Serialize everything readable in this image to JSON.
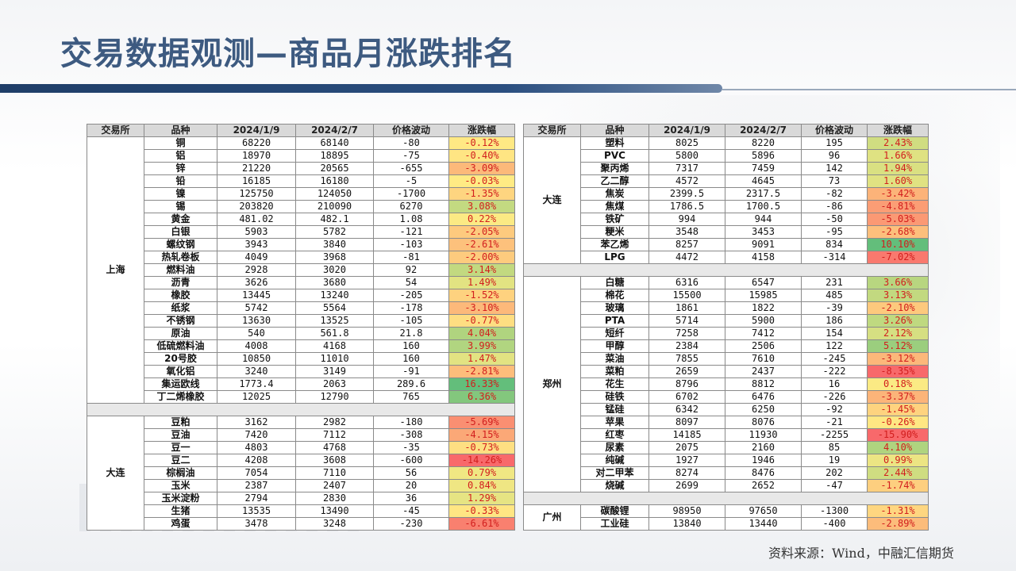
{
  "title": "交易数据观测—商品月涨跌排名",
  "source": "资料来源：Wind，中融汇信期货",
  "headers": [
    "交易所",
    "品种",
    "2024/1/9",
    "2024/2/7",
    "价格波动",
    "涨跌幅"
  ],
  "colors": {
    "title": "#3d5a80",
    "bar": "#1f3e68",
    "header_bg": "#d9d9d9",
    "text_red": "#d21e1e"
  },
  "left_groups": [
    {
      "exchange": "上海",
      "rows": [
        [
          "铜",
          "68220",
          "68140",
          "-80",
          "-0.12%"
        ],
        [
          "铝",
          "18970",
          "18895",
          "-75",
          "-0.40%"
        ],
        [
          "锌",
          "21220",
          "20565",
          "-655",
          "-3.09%"
        ],
        [
          "铅",
          "16185",
          "16180",
          "-5",
          "-0.03%"
        ],
        [
          "镍",
          "125750",
          "124050",
          "-1700",
          "-1.35%"
        ],
        [
          "锡",
          "203820",
          "210090",
          "6270",
          "3.08%"
        ],
        [
          "黄金",
          "481.02",
          "482.1",
          "1.08",
          "0.22%"
        ],
        [
          "白银",
          "5903",
          "5782",
          "-121",
          "-2.05%"
        ],
        [
          "螺纹钢",
          "3943",
          "3840",
          "-103",
          "-2.61%"
        ],
        [
          "热轧卷板",
          "4049",
          "3968",
          "-81",
          "-2.00%"
        ],
        [
          "燃料油",
          "2928",
          "3020",
          "92",
          "3.14%"
        ],
        [
          "沥青",
          "3626",
          "3680",
          "54",
          "1.49%"
        ],
        [
          "橡胶",
          "13445",
          "13240",
          "-205",
          "-1.52%"
        ],
        [
          "纸浆",
          "5742",
          "5564",
          "-178",
          "-3.10%"
        ],
        [
          "不锈钢",
          "13630",
          "13525",
          "-105",
          "-0.77%"
        ],
        [
          "原油",
          "540",
          "561.8",
          "21.8",
          "4.04%"
        ],
        [
          "低硫燃料油",
          "4008",
          "4168",
          "160",
          "3.99%"
        ],
        [
          "20号胶",
          "10850",
          "11010",
          "160",
          "1.47%"
        ],
        [
          "氧化铝",
          "3240",
          "3149",
          "-91",
          "-2.81%"
        ],
        [
          "集运欧线",
          "1773.4",
          "2063",
          "289.6",
          "16.33%"
        ],
        [
          "丁二烯橡胶",
          "12025",
          "12790",
          "765",
          "6.36%"
        ]
      ]
    },
    {
      "exchange": "大连",
      "rows": [
        [
          "豆粕",
          "3162",
          "2982",
          "-180",
          "-5.69%"
        ],
        [
          "豆油",
          "7420",
          "7112",
          "-308",
          "-4.15%"
        ],
        [
          "豆一",
          "4803",
          "4768",
          "-35",
          "-0.73%"
        ],
        [
          "豆二",
          "4208",
          "3608",
          "-600",
          "-14.26%"
        ],
        [
          "棕榈油",
          "7054",
          "7110",
          "56",
          "0.79%"
        ],
        [
          "玉米",
          "2387",
          "2407",
          "20",
          "0.84%"
        ],
        [
          "玉米淀粉",
          "2794",
          "2830",
          "36",
          "1.29%"
        ],
        [
          "生猪",
          "13535",
          "13490",
          "-45",
          "-0.33%"
        ],
        [
          "鸡蛋",
          "3478",
          "3248",
          "-230",
          "-6.61%"
        ]
      ]
    }
  ],
  "right_groups": [
    {
      "exchange": "大连",
      "rows": [
        [
          "塑料",
          "8025",
          "8220",
          "195",
          "2.43%"
        ],
        [
          "PVC",
          "5800",
          "5896",
          "96",
          "1.66%"
        ],
        [
          "聚丙烯",
          "7317",
          "7459",
          "142",
          "1.94%"
        ],
        [
          "乙二醇",
          "4572",
          "4645",
          "73",
          "1.60%"
        ],
        [
          "焦炭",
          "2399.5",
          "2317.5",
          "-82",
          "-3.42%"
        ],
        [
          "焦煤",
          "1786.5",
          "1700.5",
          "-86",
          "-4.81%"
        ],
        [
          "铁矿",
          "994",
          "944",
          "-50",
          "-5.03%"
        ],
        [
          "粳米",
          "3548",
          "3453",
          "-95",
          "-2.68%"
        ],
        [
          "苯乙烯",
          "8257",
          "9091",
          "834",
          "10.10%"
        ],
        [
          "LPG",
          "4472",
          "4158",
          "-314",
          "-7.02%"
        ]
      ]
    },
    {
      "exchange": "郑州",
      "rows": [
        [
          "白糖",
          "6316",
          "6547",
          "231",
          "3.66%"
        ],
        [
          "棉花",
          "15500",
          "15985",
          "485",
          "3.13%"
        ],
        [
          "玻璃",
          "1861",
          "1822",
          "-39",
          "-2.10%"
        ],
        [
          "PTA",
          "5714",
          "5900",
          "186",
          "3.26%"
        ],
        [
          "短纤",
          "7258",
          "7412",
          "154",
          "2.12%"
        ],
        [
          "甲醇",
          "2384",
          "2506",
          "122",
          "5.12%"
        ],
        [
          "菜油",
          "7855",
          "7610",
          "-245",
          "-3.12%"
        ],
        [
          "菜粕",
          "2659",
          "2437",
          "-222",
          "-8.35%"
        ],
        [
          "花生",
          "8796",
          "8812",
          "16",
          "0.18%"
        ],
        [
          "硅铁",
          "6702",
          "6476",
          "-226",
          "-3.37%"
        ],
        [
          "锰硅",
          "6342",
          "6250",
          "-92",
          "-1.45%"
        ],
        [
          "苹果",
          "8097",
          "8076",
          "-21",
          "-0.26%"
        ],
        [
          "红枣",
          "14185",
          "11930",
          "-2255",
          "-15.90%"
        ],
        [
          "尿素",
          "2075",
          "2160",
          "85",
          "4.10%"
        ],
        [
          "纯碱",
          "1927",
          "1946",
          "19",
          "0.99%"
        ],
        [
          "对二甲苯",
          "8274",
          "8476",
          "202",
          "2.44%"
        ],
        [
          "烧碱",
          "2699",
          "2652",
          "-47",
          "-1.74%"
        ]
      ]
    },
    {
      "exchange": "广州",
      "rows": [
        [
          "碳酸锂",
          "98950",
          "97650",
          "-1300",
          "-1.31%"
        ],
        [
          "工业硅",
          "13840",
          "13440",
          "-400",
          "-2.89%"
        ]
      ]
    }
  ]
}
